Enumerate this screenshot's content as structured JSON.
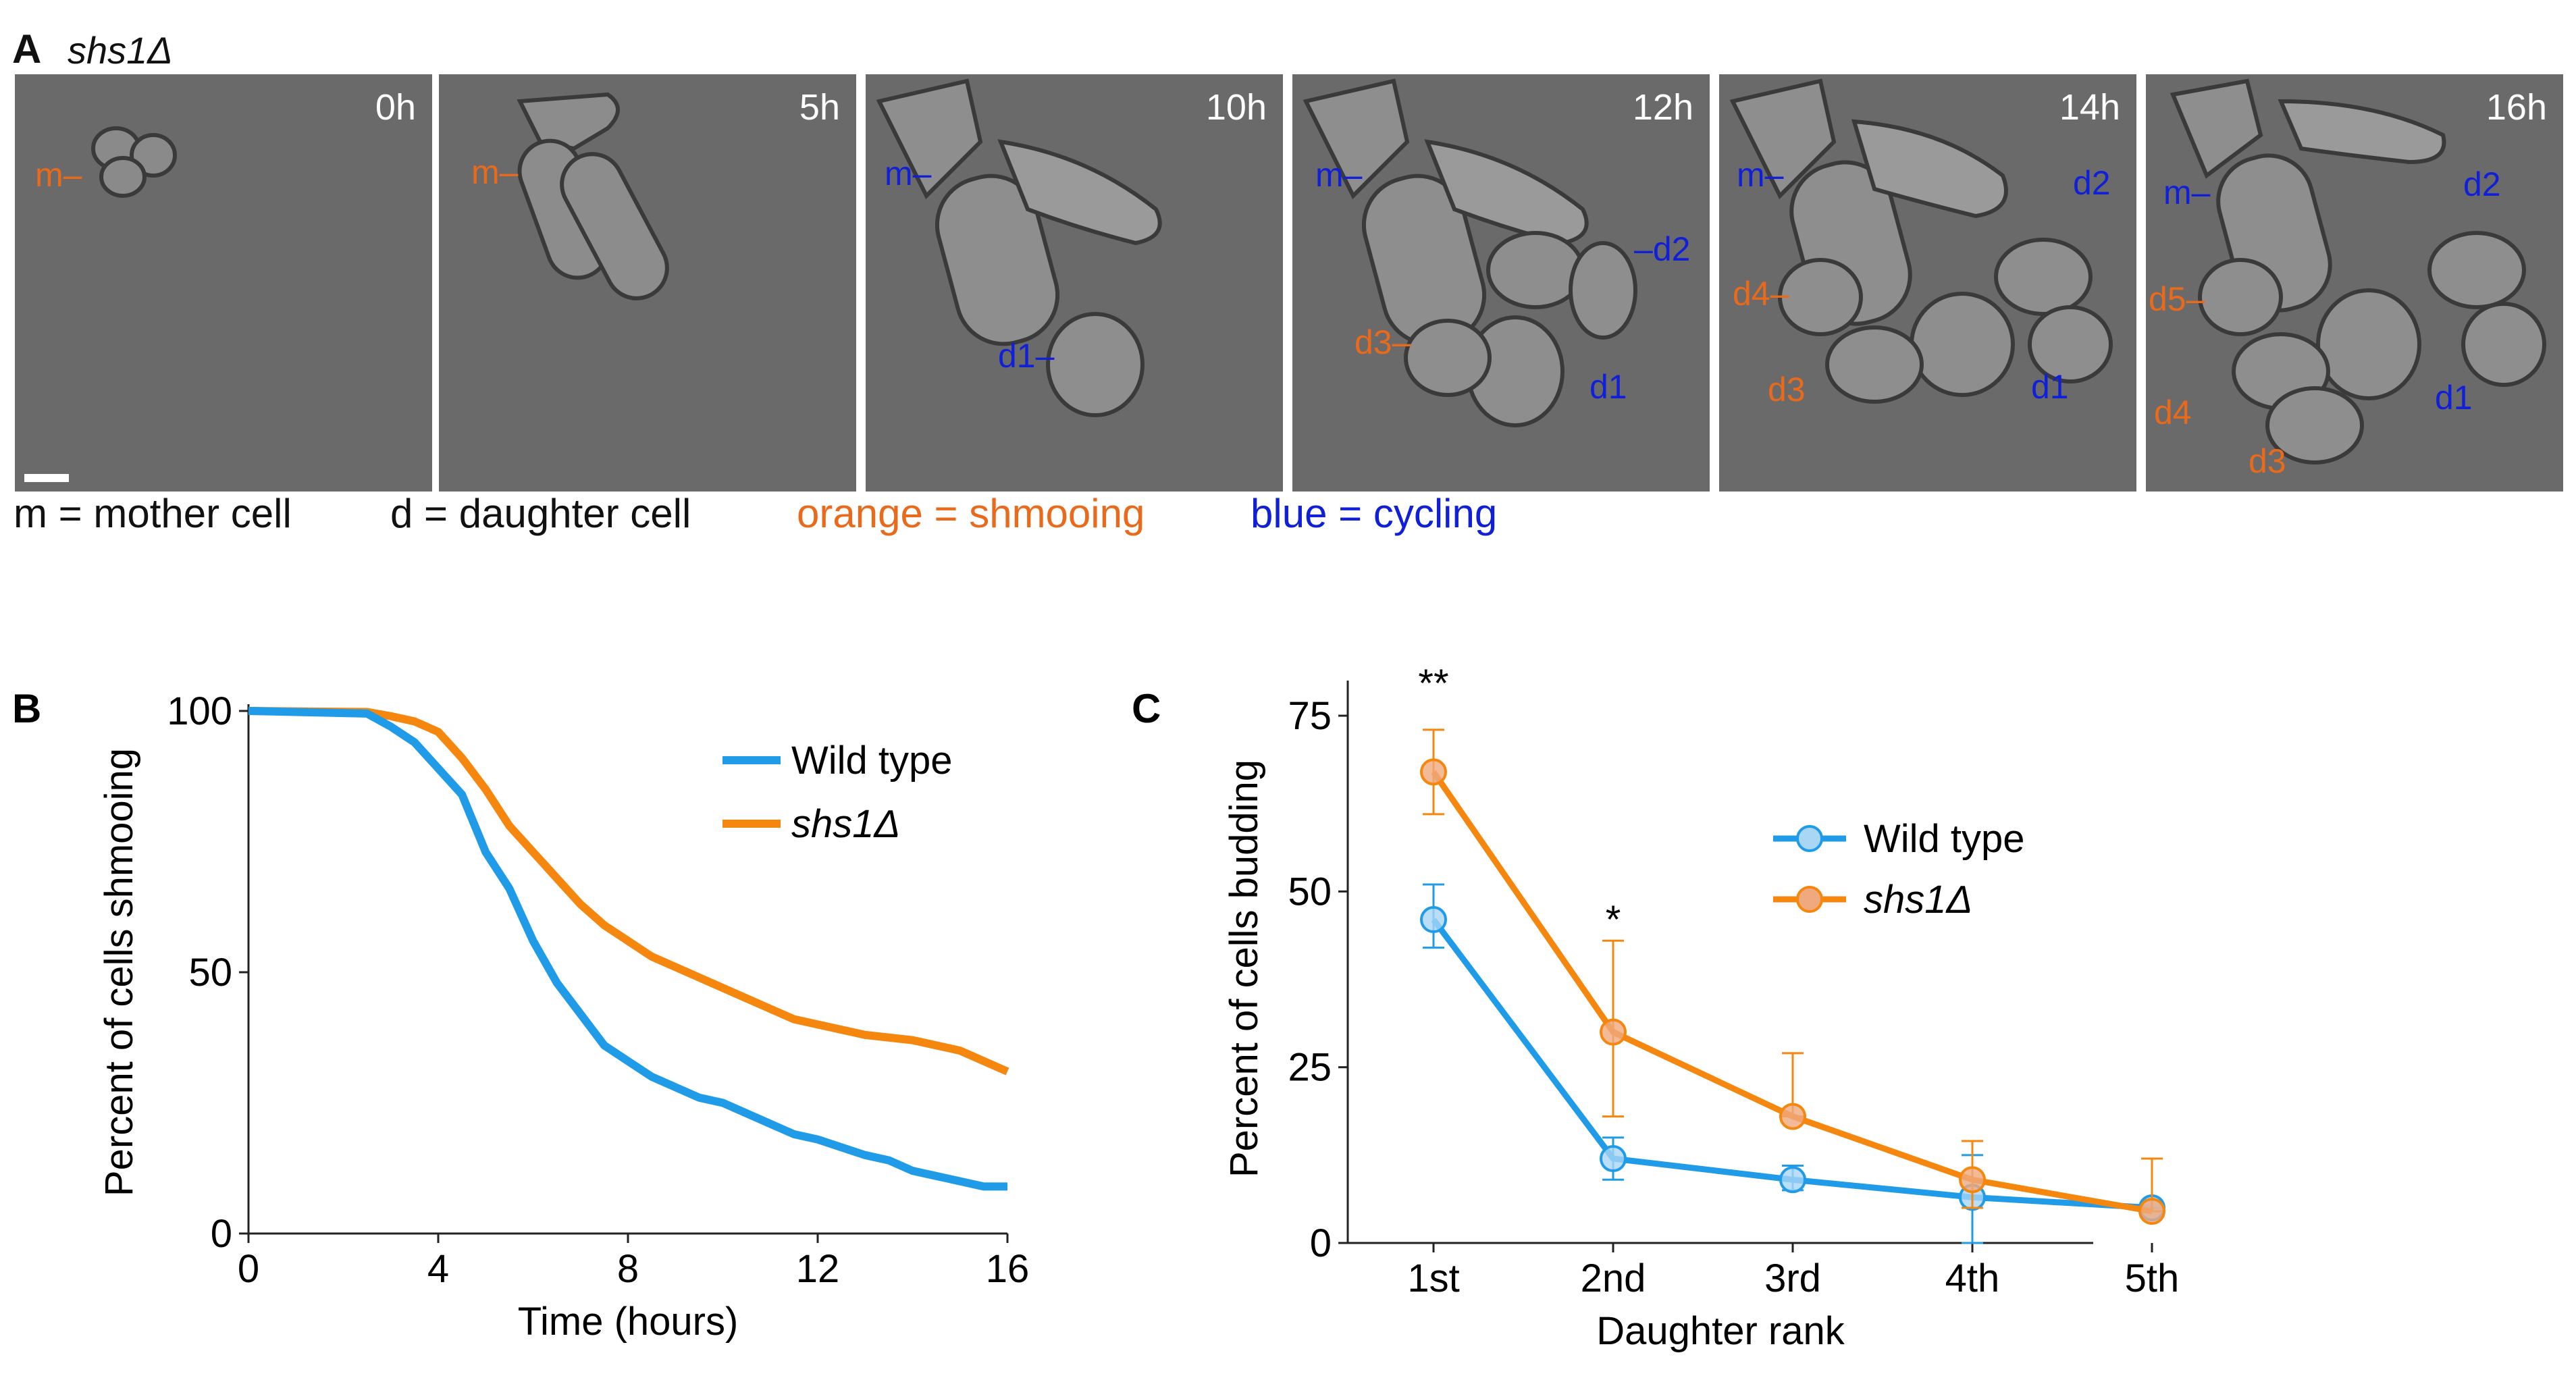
{
  "panel_a": {
    "letter": "A",
    "title": "shs1Δ",
    "frames": [
      {
        "time": "0h",
        "labels": [
          {
            "text": "m",
            "color": "orange"
          }
        ]
      },
      {
        "time": "5h",
        "labels": [
          {
            "text": "m",
            "color": "orange"
          }
        ]
      },
      {
        "time": "10h",
        "labels": [
          {
            "text": "m",
            "color": "blue"
          },
          {
            "text": "d1",
            "color": "blue"
          }
        ]
      },
      {
        "time": "12h",
        "labels": [
          {
            "text": "m",
            "color": "blue"
          },
          {
            "text": "d2",
            "color": "blue"
          },
          {
            "text": "d3",
            "color": "orange"
          },
          {
            "text": "d1",
            "color": "blue"
          }
        ]
      },
      {
        "time": "14h",
        "labels": [
          {
            "text": "m",
            "color": "blue"
          },
          {
            "text": "d2",
            "color": "blue"
          },
          {
            "text": "d4",
            "color": "orange"
          },
          {
            "text": "d3",
            "color": "orange"
          },
          {
            "text": "d1",
            "color": "blue"
          }
        ]
      },
      {
        "time": "16h",
        "labels": [
          {
            "text": "m",
            "color": "blue"
          },
          {
            "text": "d2",
            "color": "blue"
          },
          {
            "text": "d5",
            "color": "orange"
          },
          {
            "text": "d4",
            "color": "orange"
          },
          {
            "text": "d1",
            "color": "blue"
          },
          {
            "text": "d3",
            "color": "orange"
          }
        ]
      }
    ],
    "legend": {
      "mother": "m = mother cell",
      "daughter": "d = daughter cell",
      "orange": "orange = shmooing",
      "blue": "blue = cycling"
    }
  },
  "colors": {
    "orange": "#ea6a1c",
    "blue": "#1020d8",
    "wt_line": "#1f9be8",
    "shs1_line": "#f5870f"
  },
  "chart_data": [
    {
      "panel": "B",
      "type": "line",
      "xlabel": "Time (hours)",
      "ylabel": "Percent of cells shmooing",
      "xlim": [
        0,
        16
      ],
      "ylim": [
        0,
        100
      ],
      "xticks": [
        "0",
        "4",
        "8",
        "12",
        "16"
      ],
      "yticks": [
        "0",
        "50",
        "100"
      ],
      "series": [
        {
          "name": "Wild type",
          "x": [
            0,
            2.5,
            3,
            3.5,
            4,
            4.5,
            5,
            5.5,
            6,
            6.5,
            7,
            7.5,
            8,
            8.5,
            9,
            9.5,
            10,
            10.5,
            11,
            11.5,
            12,
            12.5,
            13,
            13.5,
            14,
            14.5,
            15,
            15.5,
            16
          ],
          "values": [
            100,
            99.5,
            97,
            94,
            89,
            84,
            73,
            66,
            56,
            48,
            42,
            36,
            33,
            30,
            28,
            26,
            25,
            23,
            21,
            19,
            18,
            16.5,
            15,
            14,
            12,
            11,
            10,
            9,
            9
          ]
        },
        {
          "name": "shs1Δ",
          "x": [
            0,
            2.5,
            3,
            3.5,
            4,
            4.5,
            5,
            5.5,
            6,
            6.5,
            7,
            7.5,
            8,
            8.5,
            9,
            9.5,
            10,
            10.5,
            11,
            11.5,
            12,
            12.5,
            13,
            13.5,
            14,
            14.5,
            15,
            15.5,
            16
          ],
          "values": [
            100,
            99.8,
            99,
            98,
            96,
            91,
            85,
            78,
            73,
            68,
            63,
            59,
            56,
            53,
            51,
            49,
            47,
            45,
            43,
            41,
            40,
            39,
            38,
            37.5,
            37,
            36,
            35,
            33,
            31
          ]
        }
      ],
      "legend_position": "top-right"
    },
    {
      "panel": "C",
      "type": "line",
      "xlabel": "Daughter rank",
      "ylabel": "Percent of cells budding",
      "categories": [
        "1st",
        "2nd",
        "3rd",
        "4th",
        "5th"
      ],
      "ylim": [
        0,
        80
      ],
      "yticks": [
        "0",
        "25",
        "50",
        "75"
      ],
      "series": [
        {
          "name": "Wild type",
          "values": [
            46,
            12,
            9,
            6.5,
            5
          ],
          "err_low": [
            42,
            9,
            7.5,
            0,
            5
          ],
          "err_high": [
            51,
            15,
            11,
            12.5,
            5
          ]
        },
        {
          "name": "shs1Δ",
          "values": [
            67,
            30,
            18,
            9,
            4.5
          ],
          "err_low": [
            61,
            18,
            18,
            5,
            4.5
          ],
          "err_high": [
            73,
            43,
            27,
            14.5,
            12
          ]
        }
      ],
      "annotations": [
        {
          "category": "1st",
          "text": "**"
        },
        {
          "category": "2nd",
          "text": "*"
        }
      ],
      "legend_position": "top-right"
    }
  ]
}
